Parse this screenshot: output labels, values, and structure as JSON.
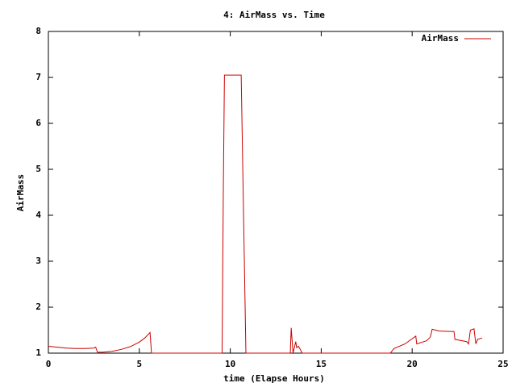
{
  "chart_data": {
    "type": "line",
    "title": "4: AirMass vs. Time",
    "x_label": "time (Elapse Hours)",
    "y_label": "AirMass",
    "x": [
      0,
      0.5,
      1,
      1.5,
      2,
      2.5,
      2.6,
      2.7,
      3,
      3.5,
      4,
      4.5,
      5,
      5.3,
      5.59,
      5.67,
      9.55,
      9.62,
      9.68,
      10.6,
      10.86,
      13.3,
      13.35,
      13.45,
      13.6,
      13.65,
      13.75,
      13.96,
      18.8,
      19.0,
      19.6,
      20.2,
      20.25,
      20.8,
      21.0,
      21.1,
      21.5,
      22.3,
      22.35,
      22.6,
      23.0,
      23.1,
      23.2,
      23.4,
      23.5,
      23.6,
      23.85
    ],
    "series": [
      {
        "name": "AirMass",
        "color": "#cc0000",
        "values": [
          1.15,
          1.13,
          1.11,
          1.1,
          1.1,
          1.11,
          1.13,
          1.02,
          1.02,
          1.04,
          1.08,
          1.14,
          1.24,
          1.33,
          1.45,
          1.0,
          1.0,
          4.6,
          7.05,
          7.05,
          1.0,
          1.0,
          1.55,
          1.0,
          1.25,
          1.12,
          1.15,
          1.0,
          1.0,
          1.1,
          1.2,
          1.37,
          1.2,
          1.27,
          1.35,
          1.52,
          1.48,
          1.47,
          1.3,
          1.28,
          1.25,
          1.2,
          1.5,
          1.53,
          1.2,
          1.3,
          1.33
        ]
      }
    ],
    "xlim": [
      0,
      25
    ],
    "xticks": [
      0,
      5,
      10,
      15,
      20,
      25
    ],
    "ylim": [
      1,
      8
    ],
    "yticks": [
      1,
      2,
      3,
      4,
      5,
      6,
      7,
      8
    ],
    "legend": "top-right",
    "grid": false
  }
}
